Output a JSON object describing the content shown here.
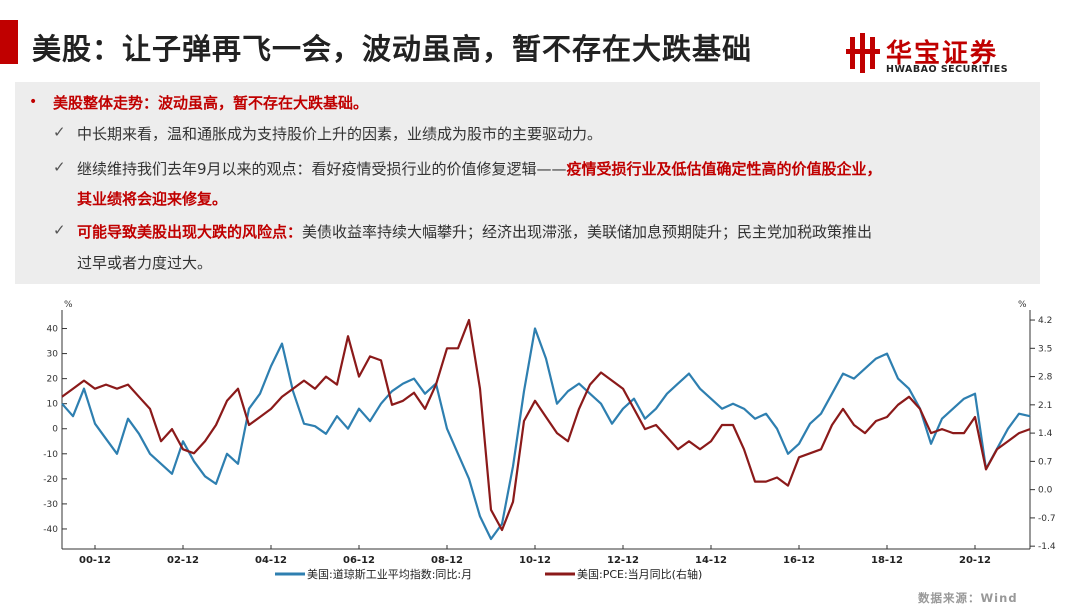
{
  "title": "美股：让子弹再飞一会，波动虽高，暂不存在大跌基础",
  "logo": {
    "name_cn": "华宝证券",
    "name_en": "HWABAO SECURITIES",
    "color": "#c00000"
  },
  "bullets": {
    "head": "美股整体走势：波动虽高，暂不存在大跌基础。",
    "item1": "中长期来看，温和通胀成为支持股价上升的因素，业绩成为股市的主要驱动力。",
    "item2_a": "继续维持我们去年9月以来的观点：看好疫情受损行业的价值修复逻辑——",
    "item2_b": "疫情受损行业及低估值确定性高的价值股企业，",
    "item2_c": "其业绩将会迎来修复。",
    "item3_a": "可能导致美股出现大跌的风险点：",
    "item3_b": "美债收益率持续大幅攀升；经济出现滞涨，美联储加息预期陡升；民主党加税政策推出",
    "item3_c": "过早或者力度过大。"
  },
  "source": "数据来源：Wind",
  "chart_data": {
    "type": "line",
    "left_unit": "%",
    "right_unit": "%",
    "left_ticks": [
      40,
      30,
      20,
      10,
      0,
      -10,
      -20,
      -30,
      -40
    ],
    "right_ticks": [
      4.2,
      3.5,
      2.8,
      2.1,
      1.4,
      0.7,
      0.0,
      -0.7,
      -1.4
    ],
    "ylim_left": [
      -48,
      45
    ],
    "ylim_right": [
      -1.47,
      4.3
    ],
    "x_ticks": [
      "00-12",
      "02-12",
      "04-12",
      "06-12",
      "08-12",
      "10-12",
      "12-12",
      "14-12",
      "16-12",
      "18-12",
      "20-12"
    ],
    "x_tick_years": [
      2000,
      2002,
      2004,
      2006,
      2008,
      2010,
      2012,
      2014,
      2016,
      2018,
      2020
    ],
    "x_range": [
      1999.25,
      2021.25
    ],
    "series": [
      {
        "name": "美国:道琼斯工业平均指数:同比:月",
        "axis": "left",
        "color": "#2e7fb0",
        "points": [
          [
            1999.25,
            10
          ],
          [
            1999.5,
            5
          ],
          [
            1999.75,
            16
          ],
          [
            2000,
            2
          ],
          [
            2000.25,
            -4
          ],
          [
            2000.5,
            -10
          ],
          [
            2000.75,
            4
          ],
          [
            2001,
            -2
          ],
          [
            2001.25,
            -10
          ],
          [
            2001.5,
            -14
          ],
          [
            2001.75,
            -18
          ],
          [
            2002,
            -5
          ],
          [
            2002.25,
            -13
          ],
          [
            2002.5,
            -19
          ],
          [
            2002.75,
            -22
          ],
          [
            2003,
            -10
          ],
          [
            2003.25,
            -14
          ],
          [
            2003.5,
            8
          ],
          [
            2003.75,
            14
          ],
          [
            2004,
            25
          ],
          [
            2004.25,
            34
          ],
          [
            2004.5,
            15
          ],
          [
            2004.75,
            2
          ],
          [
            2005,
            1
          ],
          [
            2005.25,
            -2
          ],
          [
            2005.5,
            5
          ],
          [
            2005.75,
            0
          ],
          [
            2006,
            8
          ],
          [
            2006.25,
            3
          ],
          [
            2006.5,
            10
          ],
          [
            2006.75,
            15
          ],
          [
            2007,
            18
          ],
          [
            2007.25,
            20
          ],
          [
            2007.5,
            14
          ],
          [
            2007.75,
            18
          ],
          [
            2008,
            0
          ],
          [
            2008.25,
            -10
          ],
          [
            2008.5,
            -20
          ],
          [
            2008.75,
            -35
          ],
          [
            2009,
            -44
          ],
          [
            2009.25,
            -38
          ],
          [
            2009.5,
            -15
          ],
          [
            2009.75,
            15
          ],
          [
            2010,
            40
          ],
          [
            2010.25,
            28
          ],
          [
            2010.5,
            10
          ],
          [
            2010.75,
            15
          ],
          [
            2011,
            18
          ],
          [
            2011.25,
            14
          ],
          [
            2011.5,
            10
          ],
          [
            2011.75,
            2
          ],
          [
            2012,
            8
          ],
          [
            2012.25,
            12
          ],
          [
            2012.5,
            4
          ],
          [
            2012.75,
            8
          ],
          [
            2013,
            14
          ],
          [
            2013.25,
            18
          ],
          [
            2013.5,
            22
          ],
          [
            2013.75,
            16
          ],
          [
            2014,
            12
          ],
          [
            2014.25,
            8
          ],
          [
            2014.5,
            10
          ],
          [
            2014.75,
            8
          ],
          [
            2015,
            4
          ],
          [
            2015.25,
            6
          ],
          [
            2015.5,
            0
          ],
          [
            2015.75,
            -10
          ],
          [
            2016,
            -6
          ],
          [
            2016.25,
            2
          ],
          [
            2016.5,
            6
          ],
          [
            2016.75,
            14
          ],
          [
            2017,
            22
          ],
          [
            2017.25,
            20
          ],
          [
            2017.5,
            24
          ],
          [
            2017.75,
            28
          ],
          [
            2018,
            30
          ],
          [
            2018.25,
            20
          ],
          [
            2018.5,
            16
          ],
          [
            2018.75,
            8
          ],
          [
            2019,
            -6
          ],
          [
            2019.25,
            4
          ],
          [
            2019.5,
            8
          ],
          [
            2019.75,
            12
          ],
          [
            2020,
            14
          ],
          [
            2020.25,
            -16
          ],
          [
            2020.5,
            -8
          ],
          [
            2020.75,
            0
          ],
          [
            2021,
            6
          ],
          [
            2021.25,
            5
          ]
        ]
      },
      {
        "name": "美国:PCE:当月同比(右轴)",
        "axis": "right",
        "color": "#8b1a1a",
        "points": [
          [
            1999.25,
            2.3
          ],
          [
            1999.5,
            2.5
          ],
          [
            1999.75,
            2.7
          ],
          [
            2000,
            2.5
          ],
          [
            2000.25,
            2.6
          ],
          [
            2000.5,
            2.5
          ],
          [
            2000.75,
            2.6
          ],
          [
            2001,
            2.3
          ],
          [
            2001.25,
            2.0
          ],
          [
            2001.5,
            1.2
          ],
          [
            2001.75,
            1.5
          ],
          [
            2002,
            1.0
          ],
          [
            2002.25,
            0.9
          ],
          [
            2002.5,
            1.2
          ],
          [
            2002.75,
            1.6
          ],
          [
            2003,
            2.2
          ],
          [
            2003.25,
            2.5
          ],
          [
            2003.5,
            1.6
          ],
          [
            2003.75,
            1.8
          ],
          [
            2004,
            2.0
          ],
          [
            2004.25,
            2.3
          ],
          [
            2004.5,
            2.5
          ],
          [
            2004.75,
            2.7
          ],
          [
            2005,
            2.5
          ],
          [
            2005.25,
            2.8
          ],
          [
            2005.5,
            2.6
          ],
          [
            2005.75,
            3.8
          ],
          [
            2006,
            2.8
          ],
          [
            2006.25,
            3.3
          ],
          [
            2006.5,
            3.2
          ],
          [
            2006.75,
            2.1
          ],
          [
            2007,
            2.2
          ],
          [
            2007.25,
            2.4
          ],
          [
            2007.5,
            2.0
          ],
          [
            2007.75,
            2.6
          ],
          [
            2008,
            3.5
          ],
          [
            2008.25,
            3.5
          ],
          [
            2008.5,
            4.2
          ],
          [
            2008.75,
            2.5
          ],
          [
            2009,
            -0.5
          ],
          [
            2009.25,
            -1.0
          ],
          [
            2009.5,
            -0.3
          ],
          [
            2009.75,
            1.7
          ],
          [
            2010,
            2.2
          ],
          [
            2010.25,
            1.8
          ],
          [
            2010.5,
            1.4
          ],
          [
            2010.75,
            1.2
          ],
          [
            2011,
            2.0
          ],
          [
            2011.25,
            2.6
          ],
          [
            2011.5,
            2.9
          ],
          [
            2011.75,
            2.7
          ],
          [
            2012,
            2.5
          ],
          [
            2012.25,
            2.0
          ],
          [
            2012.5,
            1.5
          ],
          [
            2012.75,
            1.6
          ],
          [
            2013,
            1.3
          ],
          [
            2013.25,
            1.0
          ],
          [
            2013.5,
            1.2
          ],
          [
            2013.75,
            1.0
          ],
          [
            2014,
            1.2
          ],
          [
            2014.25,
            1.6
          ],
          [
            2014.5,
            1.6
          ],
          [
            2014.75,
            1.0
          ],
          [
            2015,
            0.2
          ],
          [
            2015.25,
            0.2
          ],
          [
            2015.5,
            0.3
          ],
          [
            2015.75,
            0.1
          ],
          [
            2016,
            0.8
          ],
          [
            2016.25,
            0.9
          ],
          [
            2016.5,
            1.0
          ],
          [
            2016.75,
            1.6
          ],
          [
            2017,
            2.0
          ],
          [
            2017.25,
            1.6
          ],
          [
            2017.5,
            1.4
          ],
          [
            2017.75,
            1.7
          ],
          [
            2018,
            1.8
          ],
          [
            2018.25,
            2.1
          ],
          [
            2018.5,
            2.3
          ],
          [
            2018.75,
            2.0
          ],
          [
            2019,
            1.4
          ],
          [
            2019.25,
            1.5
          ],
          [
            2019.5,
            1.4
          ],
          [
            2019.75,
            1.4
          ],
          [
            2020,
            1.8
          ],
          [
            2020.25,
            0.5
          ],
          [
            2020.5,
            1.0
          ],
          [
            2020.75,
            1.2
          ],
          [
            2021,
            1.4
          ],
          [
            2021.25,
            1.5
          ]
        ]
      }
    ]
  }
}
